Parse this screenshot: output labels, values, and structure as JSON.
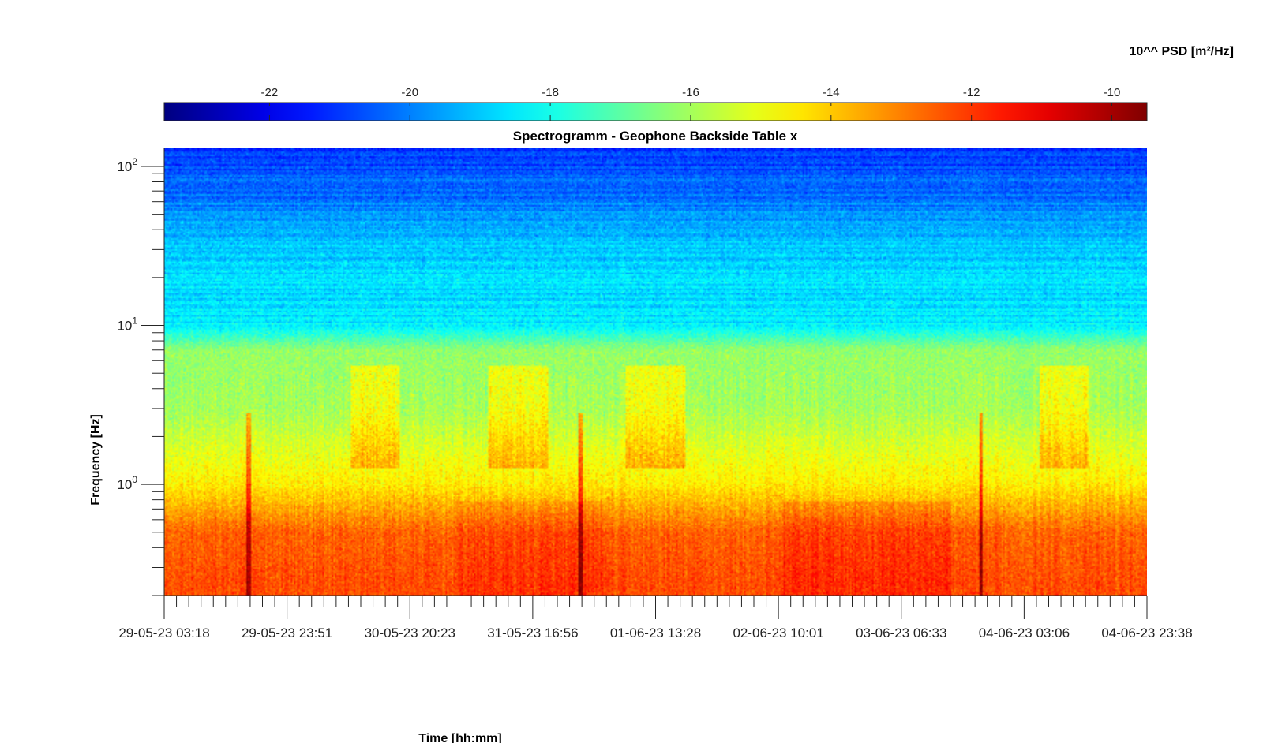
{
  "chart_data": {
    "type": "heatmap",
    "title": "Spectrogramm - Geophone Backside Table x",
    "xlabel": "Time [hh:mm]",
    "ylabel": "Frequency [Hz]",
    "y_scale": "log",
    "ylim_hz": [
      0.2,
      130
    ],
    "y_ticks": [
      {
        "base": "10",
        "exp": "2",
        "value": 100
      },
      {
        "base": "10",
        "exp": "1",
        "value": 10
      },
      {
        "base": "10",
        "exp": "0",
        "value": 1
      }
    ],
    "x_ticks": [
      "29-05-23 03:18",
      "29-05-23 23:51",
      "30-05-23 20:23",
      "31-05-23 16:56",
      "01-06-23 13:28",
      "02-06-23 10:01",
      "03-06-23 06:33",
      "04-06-23 03:06",
      "04-06-23 23:38"
    ],
    "x_minor_per_major": 10,
    "colorbar": {
      "label": "10^^ PSD [m²/Hz]",
      "placement": "top",
      "range": [
        -23.5,
        -9.5
      ],
      "ticks": [
        "-22",
        "-20",
        "-18",
        "-16",
        "-14",
        "-12",
        "-10"
      ],
      "tick_values": [
        -22,
        -20,
        -18,
        -16,
        -14,
        -12,
        -10
      ],
      "colormap": "jet"
    },
    "approx_levels_by_frequency": [
      {
        "freq_hz": 100,
        "log10_psd": -20.8
      },
      {
        "freq_hz": 30,
        "log10_psd": -19.0
      },
      {
        "freq_hz": 10,
        "log10_psd": -18.5
      },
      {
        "freq_hz": 7,
        "log10_psd": -16.2
      },
      {
        "freq_hz": 3,
        "log10_psd": -16.0
      },
      {
        "freq_hz": 1,
        "log10_psd": -14.5
      },
      {
        "freq_hz": 0.5,
        "log10_psd": -12.6
      },
      {
        "freq_hz": 0.25,
        "log10_psd": -12.3
      }
    ],
    "transient_events_time_fraction": [
      0.086,
      0.424,
      0.831
    ],
    "colors": {
      "axis": "#262626",
      "background": "#ffffff"
    }
  }
}
